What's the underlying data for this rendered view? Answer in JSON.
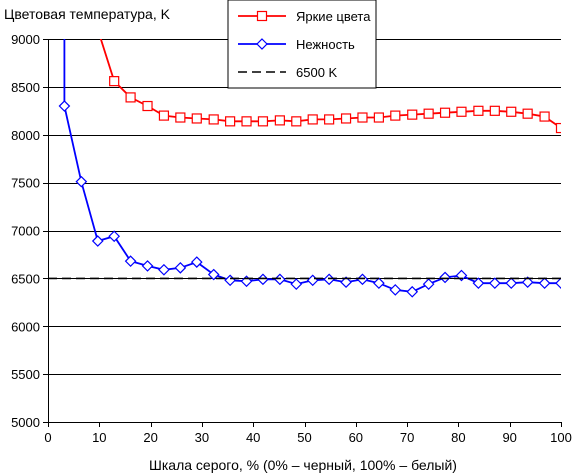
{
  "chart_data": {
    "type": "line",
    "title": "",
    "ylabel": "Цветовая температура, K",
    "xlabel": "Шкала серого, % (0% – черный, 100% – белый)",
    "xlim": [
      0,
      100
    ],
    "ylim": [
      5000,
      9000
    ],
    "xticks": [
      0,
      10,
      20,
      30,
      40,
      50,
      60,
      70,
      80,
      90,
      100
    ],
    "yticks": [
      5000,
      5500,
      6000,
      6500,
      7000,
      7500,
      8000,
      8500,
      9000
    ],
    "grid": "horizontal",
    "legend_position": "top-right",
    "series": [
      {
        "name": "Яркие цвета",
        "color": "#ff0000",
        "marker": "square",
        "points": [
          [
            10,
            9050
          ],
          [
            12.9,
            8560
          ],
          [
            16.1,
            8390
          ],
          [
            19.4,
            8300
          ],
          [
            22.6,
            8200
          ],
          [
            25.8,
            8180
          ],
          [
            29,
            8170
          ],
          [
            32.3,
            8160
          ],
          [
            35.5,
            8140
          ],
          [
            38.7,
            8140
          ],
          [
            41.9,
            8140
          ],
          [
            45.2,
            8150
          ],
          [
            48.4,
            8140
          ],
          [
            51.6,
            8160
          ],
          [
            54.8,
            8160
          ],
          [
            58.1,
            8170
          ],
          [
            61.3,
            8180
          ],
          [
            64.5,
            8180
          ],
          [
            67.7,
            8200
          ],
          [
            71,
            8210
          ],
          [
            74.2,
            8220
          ],
          [
            77.4,
            8230
          ],
          [
            80.6,
            8240
          ],
          [
            83.9,
            8250
          ],
          [
            87.1,
            8250
          ],
          [
            90.3,
            8240
          ],
          [
            93.5,
            8220
          ],
          [
            96.8,
            8190
          ],
          [
            100,
            8070
          ]
        ]
      },
      {
        "name": "Нежность",
        "color": "#0000ff",
        "marker": "diamond",
        "points": [
          [
            3.2,
            9050
          ],
          [
            3.2,
            8300
          ],
          [
            6.5,
            7510
          ],
          [
            9.7,
            6890
          ],
          [
            12.9,
            6940
          ],
          [
            16.1,
            6680
          ],
          [
            19.4,
            6630
          ],
          [
            22.6,
            6590
          ],
          [
            25.8,
            6610
          ],
          [
            29,
            6670
          ],
          [
            32.3,
            6540
          ],
          [
            35.5,
            6480
          ],
          [
            38.7,
            6470
          ],
          [
            41.9,
            6490
          ],
          [
            45.2,
            6490
          ],
          [
            48.4,
            6440
          ],
          [
            51.6,
            6480
          ],
          [
            54.8,
            6490
          ],
          [
            58.1,
            6460
          ],
          [
            61.3,
            6490
          ],
          [
            64.5,
            6450
          ],
          [
            67.7,
            6380
          ],
          [
            71,
            6360
          ],
          [
            74.2,
            6440
          ],
          [
            77.4,
            6510
          ],
          [
            80.6,
            6530
          ],
          [
            83.9,
            6450
          ],
          [
            87.1,
            6450
          ],
          [
            90.3,
            6450
          ],
          [
            93.5,
            6460
          ],
          [
            96.8,
            6450
          ],
          [
            100,
            6450
          ]
        ]
      },
      {
        "name": "6500 K",
        "color": "#000000",
        "marker": "none",
        "dashed": true,
        "points": [
          [
            0,
            6500
          ],
          [
            100,
            6500
          ]
        ]
      }
    ]
  }
}
